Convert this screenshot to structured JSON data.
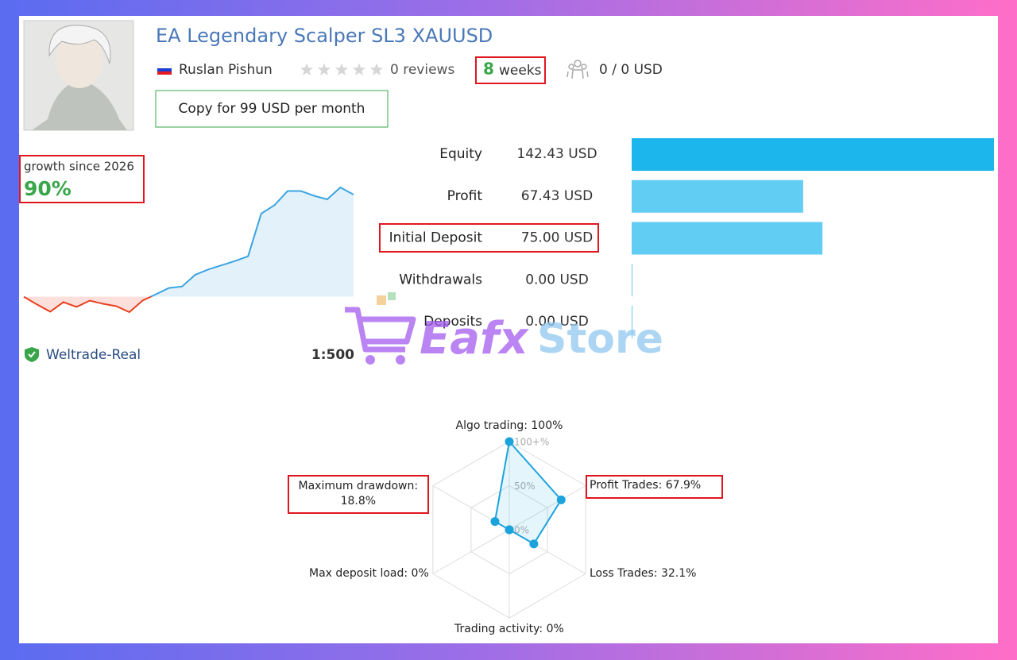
{
  "header": {
    "title": "EA Legendary Scalper SL3 XAUUSD",
    "author": "Ruslan Pishun",
    "reviews": "0 reviews",
    "weeks_value": "8",
    "weeks_label": "weeks",
    "subscribers": "0 / 0 USD",
    "copy_button": "Copy for 99 USD per month"
  },
  "growth": {
    "label": "growth since 2026",
    "value": "90%",
    "curve": [
      0,
      -6.6,
      -12.6,
      -4.6,
      -8.6,
      -3.3,
      -6,
      -8,
      -13,
      -3.3,
      2,
      7.3,
      8.6,
      18.5,
      23,
      26.5,
      30,
      34,
      70,
      77,
      89,
      89,
      85,
      82,
      92,
      86
    ]
  },
  "account": {
    "broker": "Weltrade-Real",
    "leverage": "1:500"
  },
  "stats": {
    "labels": [
      "Equity",
      "Profit",
      "Initial Deposit",
      "Withdrawals",
      "Deposits"
    ],
    "values": [
      142.43,
      67.43,
      75.0,
      0,
      0
    ],
    "value_labels": [
      "142.43 USD",
      "67.43 USD",
      "75.00 USD",
      "0.00 USD",
      "0.00 USD"
    ]
  },
  "radar": {
    "labels": [
      "Algo trading: 100%",
      "Profit Trades: 67.9%",
      "Loss Trades: 32.1%",
      "Trading activity: 0%",
      "Max deposit load: 0%",
      "Maximum drawdown:\n18.8%"
    ],
    "values": [
      100,
      67.9,
      32.1,
      0,
      0,
      18.8
    ],
    "rlim": [
      0,
      100
    ],
    "ticks": [
      {
        "value": 100,
        "label": "100+%"
      },
      {
        "value": 50,
        "label": "50%"
      },
      {
        "value": 0,
        "label": "0%"
      }
    ]
  },
  "watermark": [
    "Eafx",
    "Store"
  ]
}
